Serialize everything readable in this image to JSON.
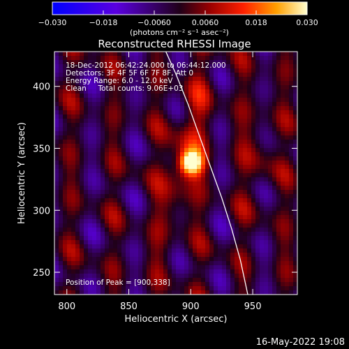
{
  "chart_data": {
    "type": "heatmap",
    "title": "Reconstructed RHESSI Image",
    "xlabel": "Heliocentric X (arcsec)",
    "ylabel": "Heliocentric Y (arcsec)",
    "xlim": [
      790,
      986
    ],
    "ylim": [
      232,
      428
    ],
    "x_ticks": [
      800,
      850,
      900,
      950
    ],
    "y_ticks": [
      250,
      300,
      350,
      400
    ],
    "colorbar": {
      "range": [
        -0.03,
        0.03
      ],
      "ticks": [
        -0.03,
        -0.018,
        -0.006,
        0.006,
        0.018,
        0.03
      ],
      "tick_labels": [
        "−0.030",
        "−0.018",
        "−0.0060",
        "0.0060",
        "0.018",
        "0.030"
      ],
      "units_label": "(photons cm⁻² s⁻¹ asec⁻²)"
    },
    "annotations": [
      "18-Dec-2012 06:42:24.000 to 06:44:12.000",
      "Detectors: 3F 4F 5F 6F 7F 8F, Att 0",
      "Energy Range: 6.0 - 12.0 keV",
      "Clean     Total counts: 9.06E+03"
    ],
    "peak_label": "Position of Peak = [900,338]",
    "peak": {
      "x": 900,
      "y": 338
    },
    "limb_curve": [
      [
        879,
        430
      ],
      [
        888,
        410
      ],
      [
        898,
        385
      ],
      [
        907,
        360
      ],
      [
        916,
        335
      ],
      [
        925,
        310
      ],
      [
        933,
        285
      ],
      [
        940,
        260
      ],
      [
        946,
        232
      ]
    ],
    "grid": false
  },
  "footer_date": "16-May-2022 19:08"
}
